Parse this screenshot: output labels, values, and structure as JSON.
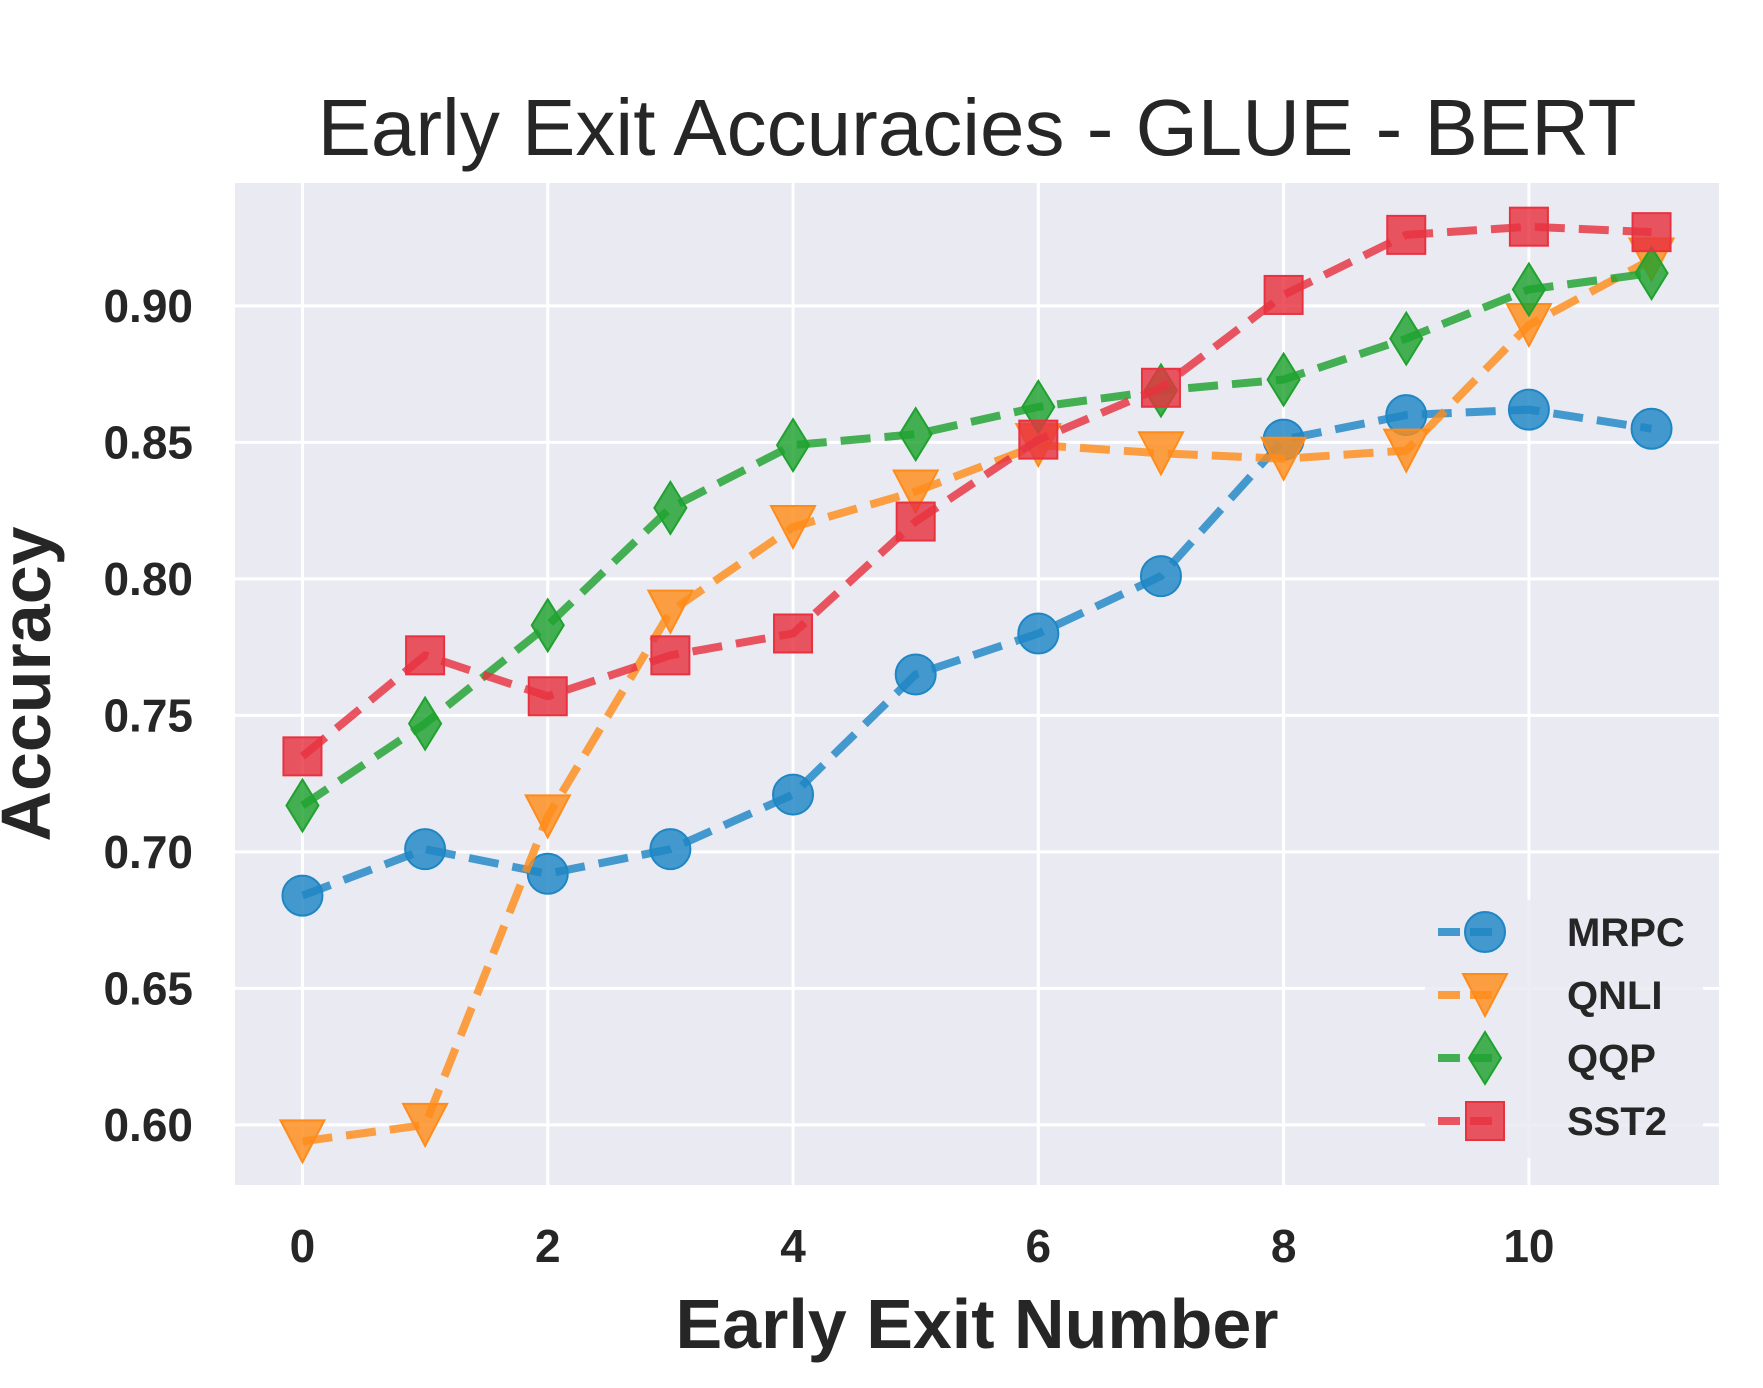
{
  "chart_data": {
    "type": "line",
    "title": "Early Exit Accuracies - GLUE - BERT",
    "xlabel": "Early Exit Number",
    "ylabel": "Accuracy",
    "x": [
      0,
      1,
      2,
      3,
      4,
      5,
      6,
      7,
      8,
      9,
      10,
      11
    ],
    "xlim": [
      -0.55,
      11.55
    ],
    "ylim": [
      0.578,
      0.945
    ],
    "xticks": [
      0,
      2,
      4,
      6,
      8,
      10
    ],
    "yticks": [
      0.6,
      0.65,
      0.7,
      0.75,
      0.8,
      0.85,
      0.9
    ],
    "ytick_labels": [
      "0.60",
      "0.65",
      "0.70",
      "0.75",
      "0.80",
      "0.85",
      "0.90"
    ],
    "grid": true,
    "legend_position": "lower-right",
    "series": [
      {
        "name": "MRPC",
        "color": "#1f86c4",
        "marker": "circle",
        "values": [
          0.684,
          0.701,
          0.692,
          0.701,
          0.721,
          0.765,
          0.78,
          0.801,
          0.851,
          0.86,
          0.862,
          0.855
        ]
      },
      {
        "name": "QNLI",
        "color": "#ff8c1a",
        "marker": "triangle-down",
        "values": [
          0.594,
          0.6,
          0.713,
          0.788,
          0.819,
          0.832,
          0.849,
          0.846,
          0.844,
          0.847,
          0.893,
          0.917
        ]
      },
      {
        "name": "QQP",
        "color": "#1fa22e",
        "marker": "diamond",
        "values": [
          0.717,
          0.747,
          0.783,
          0.826,
          0.849,
          0.853,
          0.863,
          0.869,
          0.873,
          0.888,
          0.906,
          0.912
        ]
      },
      {
        "name": "SST2",
        "color": "#e8323f",
        "marker": "square",
        "values": [
          0.735,
          0.772,
          0.757,
          0.772,
          0.78,
          0.821,
          0.851,
          0.87,
          0.904,
          0.926,
          0.929,
          0.927
        ]
      }
    ]
  }
}
